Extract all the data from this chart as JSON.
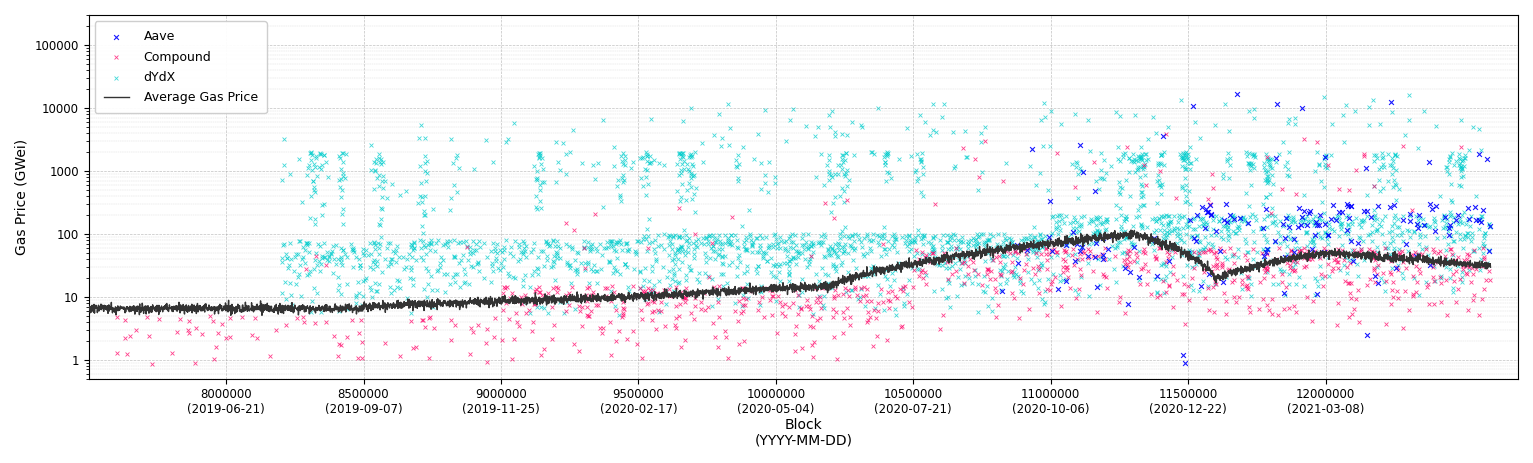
{
  "title": "",
  "ylabel": "Gas Price (GWei)",
  "xlabel": "Block\n(YYYY-MM-DD)",
  "xlim": [
    7500000,
    12700000
  ],
  "ylim_log": [
    0.5,
    300000
  ],
  "aave_color": "#0000ff",
  "compound_color": "#ff0066",
  "dydx_color": "#00cccc",
  "avg_color": "#333333",
  "legend_labels": [
    "Aave",
    "Compound",
    "dYdX",
    "Average Gas Price"
  ],
  "tick_positions": [
    8000000,
    8500000,
    9000000,
    9500000,
    10000000,
    10500000,
    11000000,
    11500000,
    12000000
  ],
  "tick_dates": [
    "(2019-06-21)",
    "(2019-09-07)",
    "(2019-11-25)",
    "(2020-02-17)",
    "(2020-05-04)",
    "(2020-07-21)",
    "(2020-10-06)",
    "(2020-12-22)",
    "(2021-03-08)"
  ],
  "yticks": [
    1,
    10,
    100,
    1000,
    10000,
    100000
  ],
  "ytick_labels": [
    "1",
    "10",
    "100",
    "1000",
    "10000",
    "100000"
  ],
  "background_color": "#ffffff",
  "grid_color": "#999999"
}
